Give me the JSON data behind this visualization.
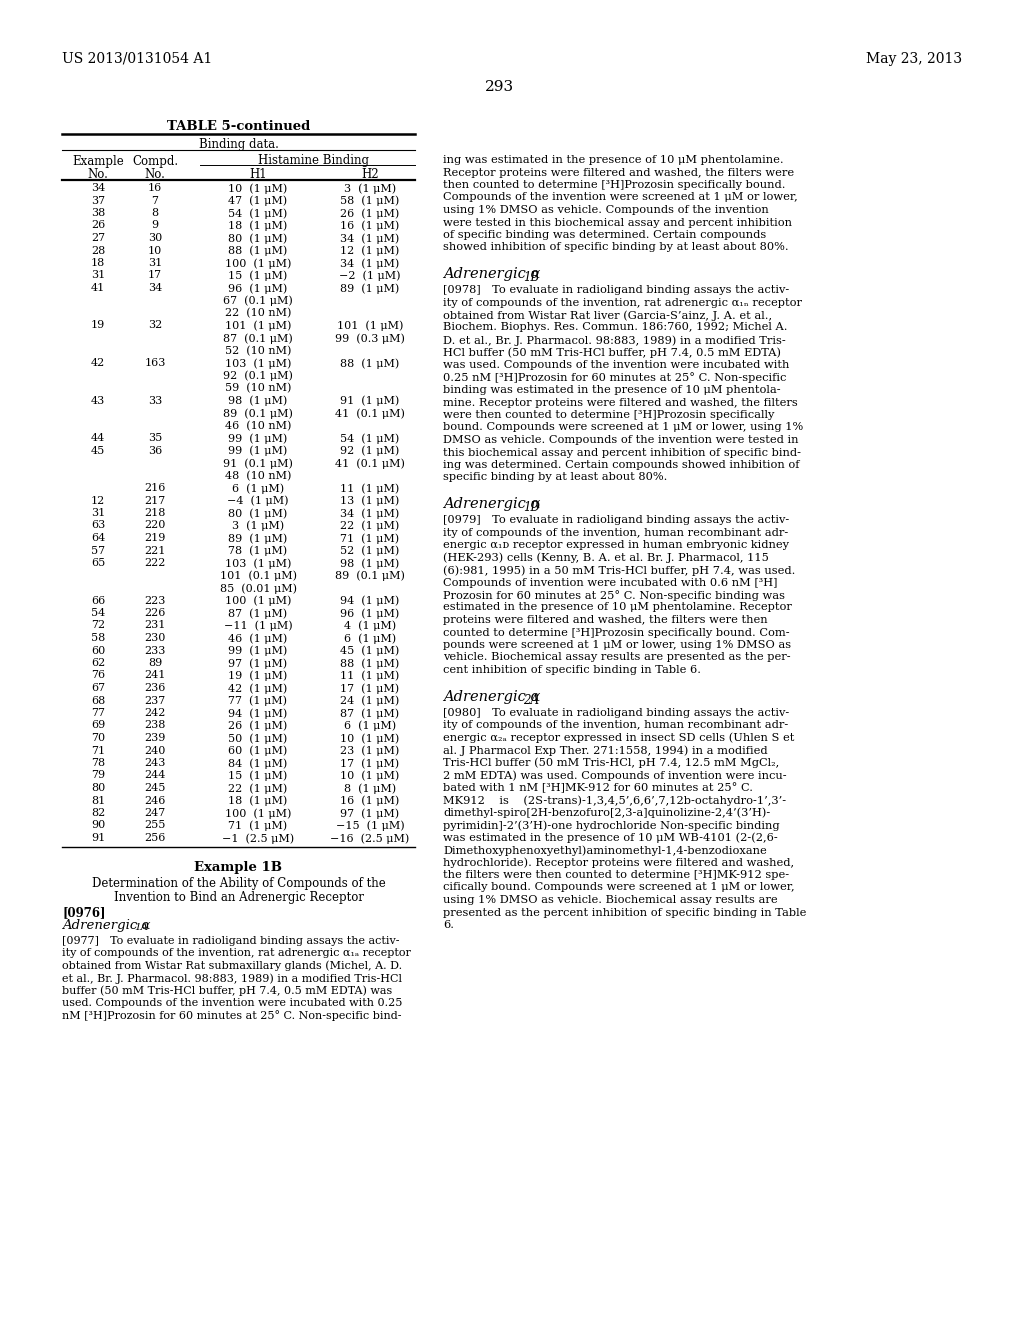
{
  "page_header_left": "US 2013/0131054 A1",
  "page_header_right": "May 23, 2013",
  "page_number": "293",
  "table_title": "TABLE 5-continued",
  "table_subtitle": "Binding data.",
  "table_rows": [
    [
      "34",
      "16",
      "10  (1 μM)",
      "3  (1 μM)"
    ],
    [
      "37",
      "7",
      "47  (1 μM)",
      "58  (1 μM)"
    ],
    [
      "38",
      "8",
      "54  (1 μM)",
      "26  (1 μM)"
    ],
    [
      "26",
      "9",
      "18  (1 μM)",
      "16  (1 μM)"
    ],
    [
      "27",
      "30",
      "80  (1 μM)",
      "34  (1 μM)"
    ],
    [
      "28",
      "10",
      "88  (1 μM)",
      "12  (1 μM)"
    ],
    [
      "18",
      "31",
      "100  (1 μM)",
      "34  (1 μM)"
    ],
    [
      "31",
      "17",
      "15  (1 μM)",
      "−2  (1 μM)"
    ],
    [
      "41",
      "34",
      "96  (1 μM)\n67  (0.1 μM)\n22  (10 nM)",
      "89  (1 μM)"
    ],
    [
      "19",
      "32",
      "101  (1 μM)\n87  (0.1 μM)\n52  (10 nM)",
      "101  (1 μM)\n99  (0.3 μM)"
    ],
    [
      "42",
      "163",
      "103  (1 μM)\n92  (0.1 μM)\n59  (10 nM)",
      "88  (1 μM)"
    ],
    [
      "43",
      "33",
      "98  (1 μM)\n89  (0.1 μM)\n46  (10 nM)",
      "91  (1 μM)\n41  (0.1 μM)"
    ],
    [
      "44",
      "35",
      "99  (1 μM)",
      "54  (1 μM)"
    ],
    [
      "45",
      "36",
      "99  (1 μM)\n91  (0.1 μM)\n48  (10 nM)",
      "92  (1 μM)\n41  (0.1 μM)"
    ],
    [
      "",
      "216",
      "6  (1 μM)",
      "11  (1 μM)"
    ],
    [
      "12",
      "217",
      "−4  (1 μM)",
      "13  (1 μM)"
    ],
    [
      "31",
      "218",
      "80  (1 μM)",
      "34  (1 μM)"
    ],
    [
      "63",
      "220",
      "3  (1 μM)",
      "22  (1 μM)"
    ],
    [
      "64",
      "219",
      "89  (1 μM)",
      "71  (1 μM)"
    ],
    [
      "57",
      "221",
      "78  (1 μM)",
      "52  (1 μM)"
    ],
    [
      "65",
      "222",
      "103  (1 μM)\n101  (0.1 μM)\n85  (0.01 μM)",
      "98  (1 μM)\n89  (0.1 μM)"
    ],
    [
      "66",
      "223",
      "100  (1 μM)",
      "94  (1 μM)"
    ],
    [
      "54",
      "226",
      "87  (1 μM)",
      "96  (1 μM)"
    ],
    [
      "72",
      "231",
      "−11  (1 μM)",
      "4  (1 μM)"
    ],
    [
      "58",
      "230",
      "46  (1 μM)",
      "6  (1 μM)"
    ],
    [
      "60",
      "233",
      "99  (1 μM)",
      "45  (1 μM)"
    ],
    [
      "62",
      "89",
      "97  (1 μM)",
      "88  (1 μM)"
    ],
    [
      "76",
      "241",
      "19  (1 μM)",
      "11  (1 μM)"
    ],
    [
      "67",
      "236",
      "42  (1 μM)",
      "17  (1 μM)"
    ],
    [
      "68",
      "237",
      "77  (1 μM)",
      "24  (1 μM)"
    ],
    [
      "77",
      "242",
      "94  (1 μM)",
      "87  (1 μM)"
    ],
    [
      "69",
      "238",
      "26  (1 μM)",
      "6  (1 μM)"
    ],
    [
      "70",
      "239",
      "50  (1 μM)",
      "10  (1 μM)"
    ],
    [
      "71",
      "240",
      "60  (1 μM)",
      "23  (1 μM)"
    ],
    [
      "78",
      "243",
      "84  (1 μM)",
      "17  (1 μM)"
    ],
    [
      "79",
      "244",
      "15  (1 μM)",
      "10  (1 μM)"
    ],
    [
      "80",
      "245",
      "22  (1 μM)",
      "8  (1 μM)"
    ],
    [
      "81",
      "246",
      "18  (1 μM)",
      "16  (1 μM)"
    ],
    [
      "82",
      "247",
      "100  (1 μM)",
      "97  (1 μM)"
    ],
    [
      "90",
      "255",
      "71  (1 μM)",
      "−15  (1 μM)"
    ],
    [
      "91",
      "256",
      "−1  (2.5 μM)",
      "−16  (2.5 μM)"
    ]
  ],
  "right_top_text": [
    "ing was estimated in the presence of 10 μM phentolamine.",
    "Receptor proteins were filtered and washed, the filters were",
    "then counted to determine [³H]Prozosin specifically bound.",
    "Compounds of the invention were screened at 1 μM or lower,",
    "using 1% DMSO as vehicle. Compounds of the invention",
    "were tested in this biochemical assay and percent inhibition",
    "of specific binding was determined. Certain compounds",
    "showed inhibition of specific binding by at least about 80%."
  ],
  "section_1b_header": "Adrenergic α",
  "section_1b_sub": "1B",
  "section_1b_body": [
    "[0978] To evaluate in radioligand binding assays the activ-",
    "ity of compounds of the invention, rat adrenergic α₁ₙ receptor",
    "obtained from Wistar Rat liver (Garcia-S’ainz, J. A. et al.,",
    "Biochem. Biophys. Res. Commun. 186:760, 1992; Michel A.",
    "D. et al., Br. J. Pharmacol. 98:883, 1989) in a modified Tris-",
    "HCl buffer (50 mM Tris-HCl buffer, pH 7.4, 0.5 mM EDTA)",
    "was used. Compounds of the invention were incubated with",
    "0.25 nM [³H]Prozosin for 60 minutes at 25° C. Non-specific",
    "binding was estimated in the presence of 10 μM phentola-",
    "mine. Receptor proteins were filtered and washed, the filters",
    "were then counted to determine [³H]Prozosin specifically",
    "bound. Compounds were screened at 1 μM or lower, using 1%",
    "DMSO as vehicle. Compounds of the invention were tested in",
    "this biochemical assay and percent inhibition of specific bind-",
    "ing was determined. Certain compounds showed inhibition of",
    "specific binding by at least about 80%."
  ],
  "section_1d_header": "Adrenergic α",
  "section_1d_sub": "1D",
  "section_1d_body": [
    "[0979] To evaluate in radioligand binding assays the activ-",
    "ity of compounds of the invention, human recombinant adr-",
    "energic α₁ᴅ receptor expressed in human embryonic kidney",
    "(HEK-293) cells (Kenny, B. A. et al. Br. J. Pharmacol, 115",
    "(6):981, 1995) in a 50 mM Tris-HCl buffer, pH 7.4, was used.",
    "Compounds of invention were incubated with 0.6 nM [³H]",
    "Prozosin for 60 minutes at 25° C. Non-specific binding was",
    "estimated in the presence of 10 μM phentolamine. Receptor",
    "proteins were filtered and washed, the filters were then",
    "counted to determine [³H]Prozosin specifically bound. Com-",
    "pounds were screened at 1 μM or lower, using 1% DMSO as",
    "vehicle. Biochemical assay results are presented as the per-",
    "cent inhibition of specific binding in Table 6."
  ],
  "section_2a_header": "Adrenergic α",
  "section_2a_sub": "2A",
  "section_2a_body": [
    "[0980] To evaluate in radioligand binding assays the activ-",
    "ity of compounds of the invention, human recombinant adr-",
    "energic α₂ₐ receptor expressed in insect SD cells (Uhlen S et",
    "al. J Pharmacol Exp Ther. 271:1558, 1994) in a modified",
    "Tris-HCl buffer (50 mM Tris-HCl, pH 7.4, 12.5 mM MgCl₂,",
    "2 mM EDTA) was used. Compounds of invention were incu-",
    "bated with 1 nM [³H]MK-912 for 60 minutes at 25° C.",
    "MK912    is    (2S-trans)-1,3,4,5’,6,6’,7,12b-octahydro-1’,3’-",
    "dimethyl-spiro[2H-benzofuro[2,3-a]quinolizine-2,4’(3’H)-",
    "pyrimidin]-2’(3’H)-one hydrochloride Non-specific binding",
    "was estimated in the presence of 10 μM WB-4101 (2-(2,6-",
    "Dimethoxyphenoxyethyl)aminomethyl-1,4-benzodioxane",
    "hydrochloride). Receptor proteins were filtered and washed,",
    "the filters were then counted to determine [³H]MK-912 spe-",
    "cifically bound. Compounds were screened at 1 μM or lower,",
    "using 1% DMSO as vehicle. Biochemical assay results are",
    "presented as the percent inhibition of specific binding in Table",
    "6."
  ],
  "left_bottom_title": "Example 1B",
  "left_bottom_subtitle1": "Determination of the Ability of Compounds of the",
  "left_bottom_subtitle2": "Invention to Bind an Adrenergic Receptor",
  "left_bottom_p1tag": "[0976]",
  "left_bottom_p1header": "Adrenergic α",
  "left_bottom_p1header_sub": "1A",
  "left_bottom_p1body": [
    "[0977] To evaluate in radioligand binding assays the activ-",
    "ity of compounds of the invention, rat adrenergic α₁ₐ receptor",
    "obtained from Wistar Rat submaxillary glands (Michel, A. D.",
    "et al., Br. J. Pharmacol. 98:883, 1989) in a modified Tris-HCl",
    "buffer (50 mM Tris-HCl buffer, pH 7.4, 0.5 mM EDTA) was",
    "used. Compounds of the invention were incubated with 0.25",
    "nM [³H]Prozosin for 60 minutes at 25° C. Non-specific bind-"
  ]
}
